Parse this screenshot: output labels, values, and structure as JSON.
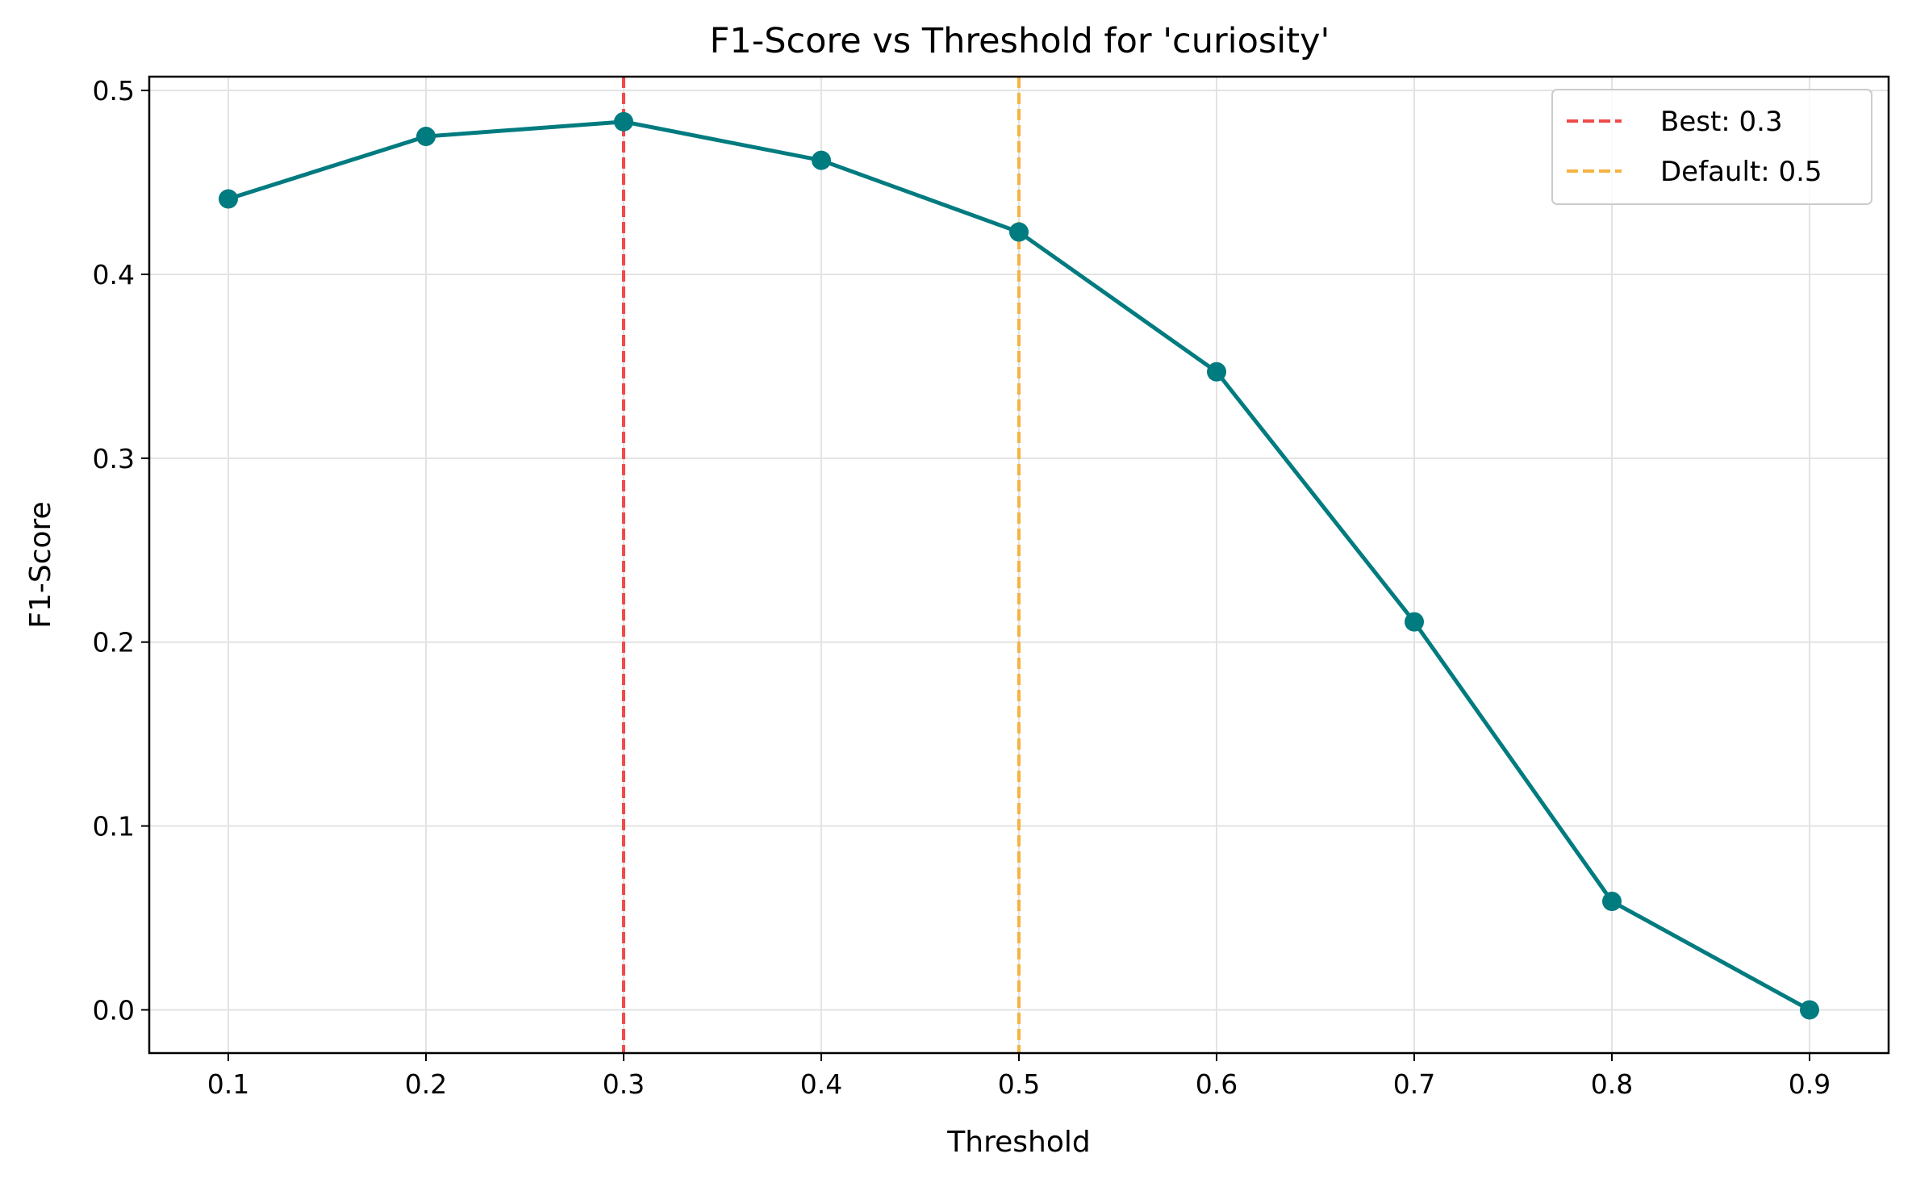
{
  "chart_data": {
    "type": "line",
    "title": "F1-Score vs Threshold for 'curiosity'",
    "xlabel": "Threshold",
    "ylabel": "F1-Score",
    "x": [
      0.1,
      0.2,
      0.3,
      0.4,
      0.5,
      0.6,
      0.7,
      0.8,
      0.9
    ],
    "series": [
      {
        "values": [
          0.441,
          0.475,
          0.483,
          0.462,
          0.423,
          0.347,
          0.211,
          0.059,
          0.0
        ],
        "color": "#007b7f"
      }
    ],
    "xlim": [
      0.06,
      0.94
    ],
    "ylim": [
      -0.0235,
      0.5075
    ],
    "xticks": [
      0.1,
      0.2,
      0.3,
      0.4,
      0.5,
      0.6,
      0.7,
      0.8,
      0.9
    ],
    "yticks": [
      0.0,
      0.1,
      0.2,
      0.3,
      0.4,
      0.5
    ],
    "xtick_labels": [
      "0.1",
      "0.2",
      "0.3",
      "0.4",
      "0.5",
      "0.6",
      "0.7",
      "0.8",
      "0.9"
    ],
    "ytick_labels": [
      "0.0",
      "0.1",
      "0.2",
      "0.3",
      "0.4",
      "0.5"
    ],
    "grid": true,
    "vlines": [
      {
        "x": 0.3,
        "label": "Best: 0.3",
        "color": "#f04a4a",
        "style": "dashed"
      },
      {
        "x": 0.5,
        "label": "Default: 0.5",
        "color": "#f5b342",
        "style": "dashed"
      }
    ],
    "legend": {
      "position": "top-right",
      "entries": [
        "Best: 0.3",
        "Default: 0.5"
      ]
    }
  }
}
